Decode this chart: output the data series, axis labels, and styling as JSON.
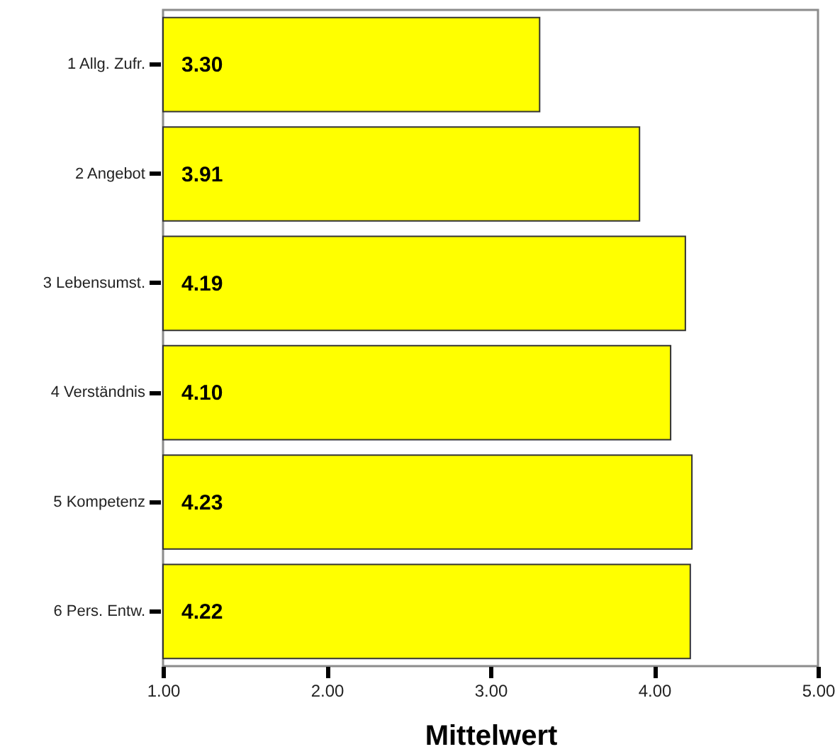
{
  "chart_data": {
    "type": "bar",
    "orientation": "horizontal",
    "categories": [
      "1 Allg. Zufr.",
      "2 Angebot",
      "3 Lebensumst.",
      "4 Verständnis",
      "5 Kompetenz",
      "6 Pers. Entw."
    ],
    "values": [
      3.3,
      3.91,
      4.19,
      4.1,
      4.23,
      4.22
    ],
    "value_labels": [
      "3.30",
      "3.91",
      "4.19",
      "4.10",
      "4.23",
      "4.22"
    ],
    "color": "#ffff00",
    "xlim": [
      1,
      5
    ],
    "xticks": [
      {
        "value": 1,
        "label": "1.00"
      },
      {
        "value": 2,
        "label": "2.00"
      },
      {
        "value": 3,
        "label": "3.00"
      },
      {
        "value": 4,
        "label": "4.00"
      },
      {
        "value": 5,
        "label": "5.00"
      }
    ],
    "xlabel": "Mittelwert"
  }
}
